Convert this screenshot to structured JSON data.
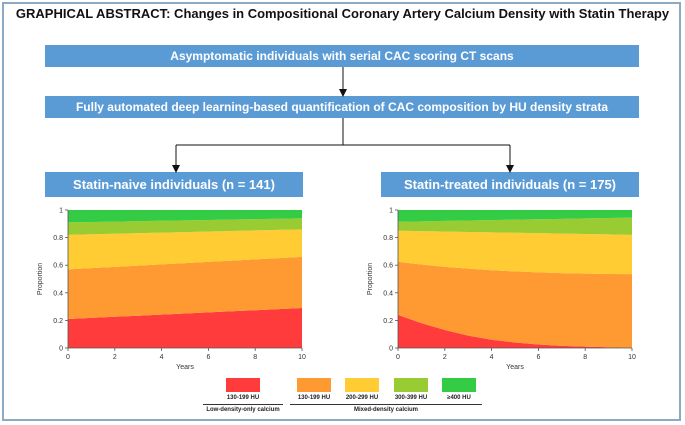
{
  "title": "GRAPHICAL ABSTRACT: Changes in Compositional Coronary Artery Calcium Density with Statin Therapy",
  "flow": {
    "step1": "Asymptomatic individuals with serial CAC scoring CT scans",
    "step2": "Fully automated deep learning-based quantification of CAC composition by HU density strata",
    "left_group": "Statin-naive individuals (n = 141)",
    "right_group": "Statin-treated individuals (n = 175)"
  },
  "colors": {
    "box": "#5b9bd5",
    "low_130_199": "#ff3b3b",
    "mixed_130_199": "#ff9a33",
    "mixed_200_299": "#ffcc33",
    "mixed_300_399": "#99cc33",
    "mixed_400": "#33cc44"
  },
  "legend": {
    "items": [
      {
        "label": "130-199 HU",
        "color": "#ff3b3b"
      },
      {
        "label": "130-199 HU",
        "color": "#ff9a33"
      },
      {
        "label": "200-299 HU",
        "color": "#ffcc33"
      },
      {
        "label": "300-399 HU",
        "color": "#99cc33"
      },
      {
        "label": "≥400 HU",
        "color": "#33cc44"
      }
    ],
    "group_low": "Low-density-only calcium",
    "group_mixed": "Mixed-density calcium"
  },
  "chart_data": [
    {
      "type": "area",
      "stacked": true,
      "ylabel": "Proportion",
      "xlabel": "Years",
      "xlim": [
        0,
        10
      ],
      "ylim": [
        0,
        1
      ],
      "xticks": [
        "0",
        "2",
        "4",
        "6",
        "8",
        "10"
      ],
      "yticks": [
        "0",
        "0.2",
        "0.4",
        "0.6",
        "0.8",
        "1"
      ],
      "x": [
        0,
        1,
        2,
        3,
        4,
        5,
        6,
        7,
        8,
        9,
        10
      ],
      "boundaries": [
        [
          0.21,
          0.218,
          0.226,
          0.234,
          0.242,
          0.25,
          0.258,
          0.266,
          0.274,
          0.282,
          0.29
        ],
        [
          0.57,
          0.579,
          0.588,
          0.597,
          0.606,
          0.615,
          0.624,
          0.633,
          0.642,
          0.651,
          0.66
        ],
        [
          0.82,
          0.824,
          0.828,
          0.832,
          0.836,
          0.84,
          0.844,
          0.848,
          0.852,
          0.856,
          0.86
        ],
        [
          0.91,
          0.913,
          0.916,
          0.919,
          0.922,
          0.925,
          0.928,
          0.931,
          0.934,
          0.937,
          0.94
        ]
      ]
    },
    {
      "type": "area",
      "stacked": true,
      "ylabel": "Proportion",
      "xlabel": "Years",
      "xlim": [
        0,
        10
      ],
      "ylim": [
        0,
        1
      ],
      "xticks": [
        "0",
        "2",
        "4",
        "6",
        "8",
        "10"
      ],
      "yticks": [
        "0",
        "0.2",
        "0.4",
        "0.6",
        "0.8",
        "1"
      ],
      "x": [
        0,
        1,
        2,
        3,
        4,
        5,
        6,
        7,
        8,
        9,
        10
      ],
      "boundaries": [
        [
          0.24,
          0.18,
          0.13,
          0.09,
          0.06,
          0.04,
          0.025,
          0.015,
          0.01,
          0.005,
          0.0
        ],
        [
          0.625,
          0.605,
          0.588,
          0.575,
          0.563,
          0.555,
          0.548,
          0.543,
          0.539,
          0.536,
          0.535
        ],
        [
          0.85,
          0.847,
          0.844,
          0.841,
          0.838,
          0.835,
          0.832,
          0.829,
          0.826,
          0.823,
          0.82
        ],
        [
          0.915,
          0.918,
          0.921,
          0.924,
          0.927,
          0.93,
          0.933,
          0.936,
          0.939,
          0.942,
          0.945
        ]
      ]
    }
  ]
}
